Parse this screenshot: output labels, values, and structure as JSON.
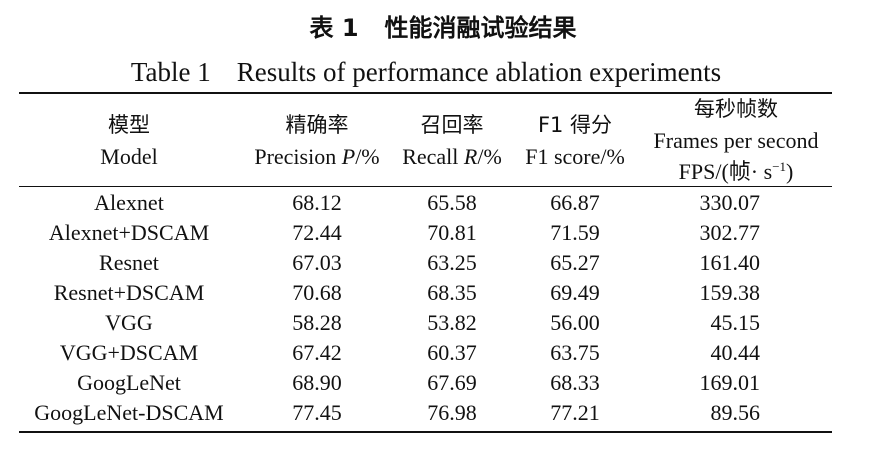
{
  "title": {
    "cn_table_no": "表 1",
    "cn_text": "性能消融试验结果",
    "en_table_no": "Table 1",
    "en_text": "Results of performance ablation experiments"
  },
  "headers": {
    "model": {
      "cn": "模型",
      "en": "Model"
    },
    "precision": {
      "cn": "精确率",
      "en_prefix": "Precision ",
      "en_var": "P",
      "en_suffix": "/%"
    },
    "recall": {
      "cn": "召回率",
      "en_prefix": "Recall ",
      "en_var": "R",
      "en_suffix": "/%"
    },
    "f1": {
      "cn": "F1 得分",
      "en": "F1 score/%"
    },
    "fps": {
      "cn": "每秒帧数",
      "en": "Frames per second",
      "unit_prefix": "FPS/(帧· s",
      "unit_sup": "−1",
      "unit_suffix": ")"
    }
  },
  "rows": [
    {
      "model": "Alexnet",
      "precision": "68.12",
      "recall": "65.58",
      "f1": "66.87",
      "fps": "330.07"
    },
    {
      "model": "Alexnet+DSCAM",
      "precision": "72.44",
      "recall": "70.81",
      "f1": "71.59",
      "fps": "302.77"
    },
    {
      "model": "Resnet",
      "precision": "67.03",
      "recall": "63.25",
      "f1": "65.27",
      "fps": "161.40"
    },
    {
      "model": "Resnet+DSCAM",
      "precision": "70.68",
      "recall": "68.35",
      "f1": "69.49",
      "fps": "159.38"
    },
    {
      "model": "VGG",
      "precision": "58.28",
      "recall": "53.82",
      "f1": "56.00",
      "fps": "45.15"
    },
    {
      "model": "VGG+DSCAM",
      "precision": "67.42",
      "recall": "60.37",
      "f1": "63.75",
      "fps": "40.44"
    },
    {
      "model": "GoogLeNet",
      "precision": "68.90",
      "recall": "67.69",
      "f1": "68.33",
      "fps": "169.01"
    },
    {
      "model": "GoogLeNet-DSCAM",
      "precision": "77.45",
      "recall": "76.98",
      "f1": "77.21",
      "fps": "89.56"
    }
  ]
}
